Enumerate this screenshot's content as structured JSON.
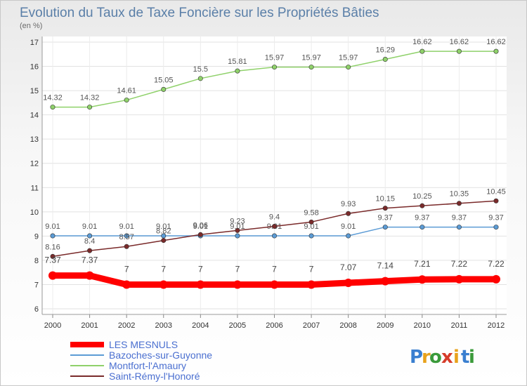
{
  "chart_data": {
    "type": "line",
    "title": "Evolution du Taux de Taxe Foncière sur les Propriétés Bâties",
    "unit_label": "(en %)",
    "x": [
      "2000",
      "2001",
      "2002",
      "2003",
      "2004",
      "2005",
      "2006",
      "2007",
      "2008",
      "2009",
      "2010",
      "2011",
      "2012"
    ],
    "ylim": [
      6,
      17
    ],
    "yticks": [
      "6",
      "7",
      "8",
      "9",
      "10",
      "11",
      "12",
      "13",
      "14",
      "15",
      "16",
      "17"
    ],
    "grid": true,
    "series": [
      {
        "name": "LES MESNULS",
        "color": "#ff0000",
        "values": [
          7.37,
          7.37,
          7,
          7,
          7,
          7,
          7,
          7,
          7.07,
          7.14,
          7.21,
          7.22,
          7.22
        ],
        "labels": [
          "7.37",
          "7.37",
          "7",
          "7",
          "7",
          "7",
          "7",
          "7",
          "7.07",
          "7.14",
          "7.21",
          "7.22",
          "7.22"
        ]
      },
      {
        "name": "Bazoches-sur-Guyonne",
        "color": "#5b9bd5",
        "values": [
          9.01,
          9.01,
          9.01,
          9.01,
          9.01,
          9.01,
          9.01,
          9.01,
          9.01,
          9.37,
          9.37,
          9.37,
          9.37
        ],
        "labels": [
          "9.01",
          "9.01",
          "9.01",
          "9.01",
          "9.01",
          "9.01",
          "9.01",
          "9.01",
          "9.01",
          "9.37",
          "9.37",
          "9.37",
          "9.37"
        ]
      },
      {
        "name": "Montfort-l'Amaury",
        "color": "#8fd16a",
        "values": [
          14.32,
          14.32,
          14.61,
          15.05,
          15.5,
          15.81,
          15.97,
          15.97,
          15.97,
          16.29,
          16.62,
          16.62,
          16.62
        ],
        "labels": [
          "14.32",
          "14.32",
          "14.61",
          "15.05",
          "15.5",
          "15.81",
          "15.97",
          "15.97",
          "15.97",
          "16.29",
          "16.62",
          "16.62",
          "16.62"
        ]
      },
      {
        "name": "Saint-Rémy-l'Honoré",
        "color": "#7a2a2a",
        "values": [
          8.16,
          8.4,
          8.57,
          8.82,
          9.06,
          9.23,
          9.4,
          9.58,
          9.93,
          10.15,
          10.25,
          10.35,
          10.45
        ],
        "labels": [
          "8.16",
          "8.4",
          "8.57",
          "8.82",
          "9.06",
          "9.23",
          "9.4",
          "9.58",
          "9.93",
          "10.15",
          "10.25",
          "10.35",
          "10.45"
        ]
      }
    ],
    "legend_position": "bottom-left"
  },
  "logo": {
    "letters": [
      "P",
      "r",
      "o",
      "x",
      "i",
      "t",
      "i"
    ],
    "colors": [
      "#3a7fd0",
      "#e8a21c",
      "#3a9a3a",
      "#d63c2a",
      "#e8a21c",
      "#3a7fd0",
      "#3a9a3a"
    ]
  }
}
